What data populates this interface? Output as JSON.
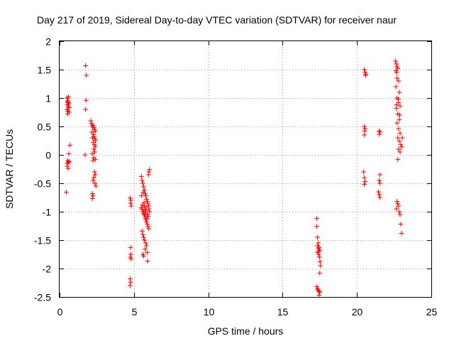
{
  "chart_data": {
    "type": "scatter",
    "title": "Day 217 of 2019, Sidereal Day-to-day VTEC variation (SDTVAR) for receiver naur",
    "xlabel": "GPS time / hours",
    "ylabel": "SDTVAR / TECUs",
    "xlim": [
      0,
      25
    ],
    "ylim": [
      -2.5,
      2
    ],
    "xticks": [
      0,
      5,
      10,
      15,
      20,
      25
    ],
    "yticks": [
      -2.5,
      -2,
      -1.5,
      -1,
      -0.5,
      0,
      0.5,
      1,
      1.5,
      2
    ],
    "xtick_labels": [
      "0",
      "5",
      "10",
      "15",
      "20",
      "25"
    ],
    "ytick_labels": [
      "-2.5",
      "-2",
      "-1.5",
      "-1",
      "-0.5",
      "0",
      "0.5",
      "1",
      "1.5",
      "2"
    ],
    "grid": true,
    "marker": "+",
    "color": "#ff0000",
    "series": [
      {
        "name": "SDTVAR",
        "points": [
          [
            0.5,
            1.0
          ],
          [
            0.55,
            0.95
          ],
          [
            0.6,
            0.92
          ],
          [
            0.52,
            0.88
          ],
          [
            0.58,
            0.85
          ],
          [
            0.62,
            0.9
          ],
          [
            0.66,
            0.83
          ],
          [
            0.5,
            0.8
          ],
          [
            0.56,
            0.77
          ],
          [
            0.64,
            0.75
          ],
          [
            0.54,
            0.72
          ],
          [
            0.6,
            1.02
          ],
          [
            0.52,
            0.93
          ],
          [
            0.7,
            0.17
          ],
          [
            0.62,
            0.02
          ],
          [
            0.55,
            -0.1
          ],
          [
            0.6,
            -0.13
          ],
          [
            0.5,
            -0.15
          ],
          [
            0.66,
            -0.12
          ],
          [
            0.52,
            -0.2
          ],
          [
            0.58,
            -0.24
          ],
          [
            0.45,
            -0.66
          ],
          [
            1.75,
            1.57
          ],
          [
            1.8,
            1.4
          ],
          [
            1.78,
            0.96
          ],
          [
            1.75,
            0.8
          ],
          [
            1.72,
            0.0
          ],
          [
            2.1,
            0.6
          ],
          [
            2.15,
            0.55
          ],
          [
            2.2,
            0.5
          ],
          [
            2.25,
            0.52
          ],
          [
            2.3,
            0.48
          ],
          [
            2.35,
            0.45
          ],
          [
            2.4,
            0.42
          ],
          [
            2.18,
            0.4
          ],
          [
            2.28,
            0.36
          ],
          [
            2.32,
            0.32
          ],
          [
            2.22,
            0.3
          ],
          [
            2.38,
            0.28
          ],
          [
            2.42,
            0.25
          ],
          [
            2.26,
            0.22
          ],
          [
            2.34,
            0.18
          ],
          [
            2.4,
            0.15
          ],
          [
            2.3,
            0.1
          ],
          [
            2.36,
            0.05
          ],
          [
            2.2,
            0.02
          ],
          [
            2.3,
            -0.05
          ],
          [
            2.4,
            -0.08
          ],
          [
            2.25,
            -0.1
          ],
          [
            2.35,
            -0.3
          ],
          [
            2.4,
            -0.35
          ],
          [
            2.3,
            -0.4
          ],
          [
            2.25,
            -0.45
          ],
          [
            2.38,
            -0.5
          ],
          [
            2.45,
            -0.55
          ],
          [
            2.2,
            -0.68
          ],
          [
            2.25,
            -0.72
          ],
          [
            2.2,
            -0.77
          ],
          [
            4.75,
            -0.76
          ],
          [
            4.8,
            -0.8
          ],
          [
            4.78,
            -0.85
          ],
          [
            4.82,
            -0.9
          ],
          [
            4.78,
            -1.63
          ],
          [
            4.8,
            -1.75
          ],
          [
            4.76,
            -1.8
          ],
          [
            4.82,
            -1.83
          ],
          [
            4.75,
            -2.18
          ],
          [
            4.78,
            -2.24
          ],
          [
            4.74,
            -2.3
          ],
          [
            5.5,
            -0.38
          ],
          [
            5.55,
            -0.45
          ],
          [
            5.6,
            -0.5
          ],
          [
            5.65,
            -0.56
          ],
          [
            5.7,
            -0.62
          ],
          [
            5.75,
            -0.68
          ],
          [
            5.8,
            -0.72
          ],
          [
            5.85,
            -0.78
          ],
          [
            5.9,
            -0.82
          ],
          [
            5.95,
            -0.86
          ],
          [
            6.0,
            -0.9
          ],
          [
            5.5,
            -0.93
          ],
          [
            5.55,
            -0.96
          ],
          [
            5.6,
            -1.0
          ],
          [
            5.65,
            -1.03
          ],
          [
            5.7,
            -1.06
          ],
          [
            5.75,
            -1.1
          ],
          [
            5.8,
            -1.14
          ],
          [
            5.85,
            -1.18
          ],
          [
            5.9,
            -1.22
          ],
          [
            5.95,
            -1.26
          ],
          [
            6.0,
            -1.3
          ],
          [
            5.55,
            -1.34
          ],
          [
            5.6,
            -1.4
          ],
          [
            5.65,
            -1.45
          ],
          [
            5.7,
            -1.5
          ],
          [
            5.8,
            -1.55
          ],
          [
            5.85,
            -1.6
          ],
          [
            5.75,
            -1.66
          ],
          [
            5.9,
            -1.72
          ],
          [
            5.6,
            -1.75
          ],
          [
            5.65,
            -1.78
          ],
          [
            5.92,
            -1.87
          ],
          [
            6.0,
            -0.3
          ],
          [
            6.05,
            -0.26
          ],
          [
            5.98,
            -0.35
          ],
          [
            5.7,
            -0.9
          ],
          [
            5.8,
            -0.98
          ],
          [
            5.9,
            -1.05
          ],
          [
            6.0,
            -0.95
          ],
          [
            6.05,
            -1.0
          ],
          [
            5.52,
            -0.72
          ],
          [
            5.58,
            -0.88
          ],
          [
            5.62,
            -0.66
          ],
          [
            5.68,
            -0.84
          ],
          [
            5.72,
            -0.96
          ],
          [
            5.78,
            -1.02
          ],
          [
            5.82,
            -0.92
          ],
          [
            5.88,
            -1.12
          ],
          [
            5.96,
            -1.08
          ],
          [
            17.3,
            -1.12
          ],
          [
            17.3,
            -1.26
          ],
          [
            17.35,
            -1.45
          ],
          [
            17.4,
            -1.55
          ],
          [
            17.35,
            -1.6
          ],
          [
            17.45,
            -1.63
          ],
          [
            17.5,
            -1.68
          ],
          [
            17.38,
            -1.72
          ],
          [
            17.42,
            -1.75
          ],
          [
            17.48,
            -1.8
          ],
          [
            17.52,
            -1.88
          ],
          [
            17.55,
            -1.95
          ],
          [
            17.5,
            -2.08
          ],
          [
            17.3,
            -2.32
          ],
          [
            17.35,
            -2.36
          ],
          [
            17.4,
            -2.38
          ],
          [
            17.45,
            -2.4
          ],
          [
            17.5,
            -2.42
          ],
          [
            17.45,
            -2.47
          ],
          [
            17.42,
            -1.65
          ],
          [
            17.38,
            -1.7
          ],
          [
            20.5,
            1.5
          ],
          [
            20.55,
            1.45
          ],
          [
            20.6,
            1.42
          ],
          [
            20.58,
            1.4
          ],
          [
            20.5,
            0.5
          ],
          [
            20.55,
            0.46
          ],
          [
            20.52,
            0.42
          ],
          [
            20.5,
            0.35
          ],
          [
            20.45,
            -0.3
          ],
          [
            20.5,
            -0.4
          ],
          [
            20.55,
            -0.47
          ],
          [
            20.5,
            -0.52
          ],
          [
            21.5,
            0.42
          ],
          [
            21.55,
            0.4
          ],
          [
            21.5,
            0.36
          ],
          [
            21.55,
            -0.35
          ],
          [
            21.5,
            -0.45
          ],
          [
            21.55,
            -0.5
          ],
          [
            21.45,
            -0.65
          ],
          [
            21.5,
            -0.7
          ],
          [
            21.55,
            -0.75
          ],
          [
            22.6,
            1.65
          ],
          [
            22.65,
            1.6
          ],
          [
            22.7,
            1.55
          ],
          [
            22.75,
            1.52
          ],
          [
            22.62,
            1.48
          ],
          [
            22.68,
            1.45
          ],
          [
            22.8,
            1.3
          ],
          [
            22.85,
            1.1
          ],
          [
            22.7,
            1.0
          ],
          [
            22.8,
            0.92
          ],
          [
            22.9,
            0.86
          ],
          [
            22.65,
            0.82
          ],
          [
            22.75,
            0.72
          ],
          [
            22.85,
            0.62
          ],
          [
            22.7,
            0.56
          ],
          [
            22.8,
            0.46
          ],
          [
            22.9,
            0.38
          ],
          [
            22.75,
            0.3
          ],
          [
            22.85,
            0.24
          ],
          [
            22.95,
            0.18
          ],
          [
            23.0,
            0.14
          ],
          [
            22.8,
            0.1
          ],
          [
            22.9,
            0.05
          ],
          [
            22.75,
            -0.08
          ],
          [
            22.7,
            -0.82
          ],
          [
            22.75,
            -0.86
          ],
          [
            22.8,
            -0.9
          ],
          [
            22.65,
            -0.95
          ],
          [
            22.85,
            -1.0
          ],
          [
            22.9,
            -1.05
          ],
          [
            22.95,
            -1.22
          ],
          [
            23.0,
            -1.38
          ],
          [
            22.62,
            1.2
          ],
          [
            22.7,
            1.35
          ],
          [
            22.78,
            0.98
          ],
          [
            22.88,
            0.7
          ],
          [
            23.05,
            0.3
          ],
          [
            22.66,
            0.88
          ]
        ]
      }
    ]
  }
}
